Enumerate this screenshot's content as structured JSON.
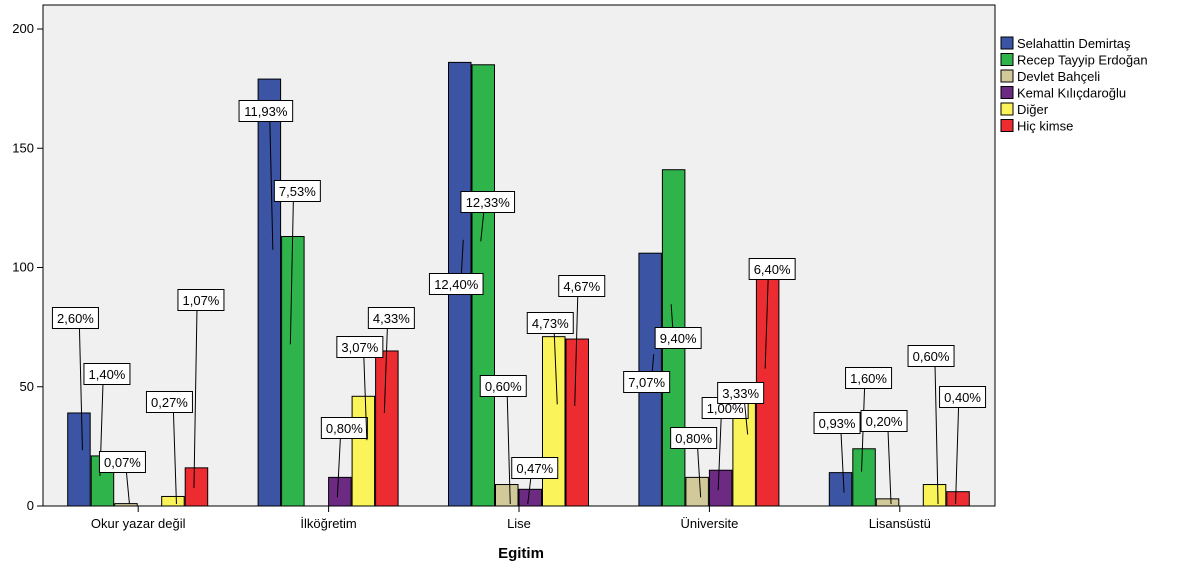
{
  "chart_data": {
    "type": "bar",
    "xlabel": "Egitim",
    "ylabel": "",
    "ylim": [
      0,
      200
    ],
    "yticks": [
      0,
      50,
      100,
      150,
      200
    ],
    "grid": false,
    "legend_position": "right",
    "categories": [
      "Okur yazar değil",
      "İlköğretim",
      "Lise",
      "Üniversite",
      "Lisansüstü"
    ],
    "series": [
      {
        "name": "Selahattin Demirtaş",
        "color": "#3b54a3",
        "values": [
          39,
          179,
          186,
          106,
          14
        ],
        "labels": [
          "2,60%",
          "11,93%",
          "12,40%",
          "7,07%",
          "0,93%"
        ]
      },
      {
        "name": "Recep Tayyip Erdoğan",
        "color": "#2fb44b",
        "values": [
          21,
          113,
          185,
          141,
          24
        ],
        "labels": [
          "1,40%",
          "7,53%",
          "12,33%",
          "9,40%",
          "1,60%"
        ]
      },
      {
        "name": "Devlet Bahçeli",
        "color": "#d2c99b",
        "values": [
          1,
          0,
          9,
          12,
          3
        ],
        "labels": [
          "0,07%",
          "",
          "0,60%",
          "0,80%",
          "0,20%"
        ]
      },
      {
        "name": "Kemal Kılıçdaroğlu",
        "color": "#6c2a83",
        "values": [
          0,
          12,
          7,
          15,
          0
        ],
        "labels": [
          "",
          "0,80%",
          "0,47%",
          "1,00%",
          ""
        ]
      },
      {
        "name": "Diğer",
        "color": "#fbf35a",
        "values": [
          4,
          46,
          71,
          50,
          9
        ],
        "labels": [
          "0,27%",
          "3,07%",
          "4,73%",
          "3,33%",
          "0,60%"
        ]
      },
      {
        "name": "Hiç kimse",
        "color": "#ed2c32",
        "values": [
          16,
          65,
          70,
          96,
          6
        ],
        "labels": [
          "1,07%",
          "4,33%",
          "4,67%",
          "6,40%",
          "0,40%"
        ]
      }
    ],
    "colors": {
      "plot_background": "#f0f0f0",
      "axis": "#000000"
    }
  }
}
